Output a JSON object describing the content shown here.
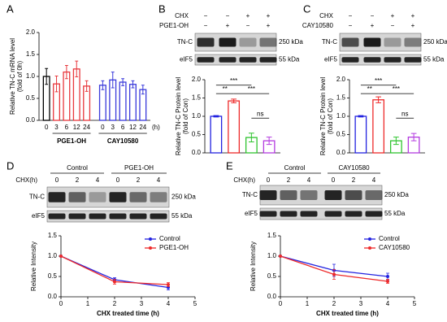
{
  "chart_data": [
    {
      "type": "bar",
      "panel": "A",
      "ylabel": [
        "Relative TN-C mRNA level",
        "(fold of 0h)"
      ],
      "categories": [
        "0",
        "3",
        "6",
        "12",
        "24",
        "0",
        "3",
        "6",
        "12",
        "24"
      ],
      "xunit": "(h)",
      "groups": [
        "PGE1-OH",
        "CAY10580"
      ],
      "values": [
        1.0,
        0.83,
        1.1,
        1.17,
        0.78,
        0.8,
        0.92,
        0.87,
        0.82,
        0.7
      ],
      "errors": [
        0.18,
        0.18,
        0.15,
        0.18,
        0.12,
        0.1,
        0.18,
        0.08,
        0.08,
        0.1
      ],
      "colors": [
        "#000000",
        "#e8383d",
        "#e8383d",
        "#e8383d",
        "#e8383d",
        "#3a3adb",
        "#3a3adb",
        "#3a3adb",
        "#3a3adb",
        "#3a3adb"
      ],
      "ylim": [
        0,
        2
      ],
      "yticks": [
        {
          "value": 0,
          "label": "0.0"
        },
        {
          "value": 0.5,
          "label": "0.5"
        },
        {
          "value": 1,
          "label": "1.0"
        },
        {
          "value": 1.5,
          "label": "1.5"
        },
        {
          "value": 2,
          "label": "2.0"
        }
      ]
    },
    {
      "type": "bar",
      "panel": "B",
      "ylabel": [
        "Relative TN-C Protein level",
        "(fold of Con)"
      ],
      "blot": {
        "rows": [
          {
            "label": "CHX",
            "marks": [
              "−",
              "−",
              "+",
              "+"
            ]
          },
          {
            "label": "PGE1-OH",
            "marks": [
              "−",
              "+",
              "−",
              "+"
            ]
          }
        ],
        "bands": [
          {
            "label": "TN-C",
            "size": "250 kDa"
          },
          {
            "label": "eIF5",
            "size": "55 kDa"
          }
        ]
      },
      "categories": [
        null,
        null,
        null,
        null
      ],
      "values": [
        1.0,
        1.42,
        0.42,
        0.33
      ],
      "errors": [
        0.02,
        0.05,
        0.12,
        0.1
      ],
      "colors": [
        "#2323e0",
        "#ee2a2a",
        "#2fc42f",
        "#b43be0"
      ],
      "annotations": [
        "**",
        "***",
        "***",
        "ns"
      ],
      "ylim": [
        0,
        2
      ],
      "yticks": [
        {
          "value": 0,
          "label": "0.0"
        },
        {
          "value": 0.5,
          "label": "0.5"
        },
        {
          "value": 1,
          "label": "1.0"
        },
        {
          "value": 1.5,
          "label": "1.5"
        },
        {
          "value": 2,
          "label": "2.0"
        }
      ]
    },
    {
      "type": "bar",
      "panel": "C",
      "ylabel": [
        "Relative TN-C Protein level",
        "(fold of Con)"
      ],
      "blot": {
        "rows": [
          {
            "label": "CHX",
            "marks": [
              "−",
              "−",
              "+",
              "+"
            ]
          },
          {
            "label": "CAY10580",
            "marks": [
              "−",
              "+",
              "−",
              "+"
            ]
          }
        ],
        "bands": [
          {
            "label": "TN-C",
            "size": "250 kDa"
          },
          {
            "label": "eIF5",
            "size": "55 kDa"
          }
        ]
      },
      "categories": [
        null,
        null,
        null,
        null
      ],
      "values": [
        1.0,
        1.45,
        0.33,
        0.43
      ],
      "errors": [
        0.02,
        0.08,
        0.1,
        0.1
      ],
      "colors": [
        "#2323e0",
        "#ee2a2a",
        "#2fc42f",
        "#b43be0"
      ],
      "annotations": [
        "**",
        "***",
        "***",
        "ns"
      ],
      "ylim": [
        0,
        2
      ],
      "yticks": [
        {
          "value": 0,
          "label": "0.0"
        },
        {
          "value": 0.5,
          "label": "0.5"
        },
        {
          "value": 1,
          "label": "1.0"
        },
        {
          "value": 1.5,
          "label": "1.5"
        },
        {
          "value": 2,
          "label": "2.0"
        }
      ]
    },
    {
      "type": "line",
      "panel": "D",
      "xlabel": "CHX treated time (h)",
      "ylabel": [
        "Relative Intensity"
      ],
      "blot": {
        "groups": [
          "Control",
          "PGE1-OH"
        ],
        "row_label": "CHX(h)",
        "lanes": [
          "0",
          "2",
          "4",
          "0",
          "2",
          "4"
        ],
        "bands": [
          {
            "label": "TN-C",
            "size": "250 kDa"
          },
          {
            "label": "eIF5",
            "size": "55 kDa"
          }
        ]
      },
      "x": [
        0,
        2,
        4
      ],
      "series": [
        {
          "name": "Control",
          "color": "#2323e0",
          "values": [
            1.0,
            0.42,
            0.23
          ],
          "errors": [
            0,
            0.05,
            0.06
          ]
        },
        {
          "name": "PGE1-OH",
          "color": "#ee2a2a",
          "values": [
            1.0,
            0.37,
            0.3
          ],
          "errors": [
            0,
            0.06,
            0.05
          ]
        }
      ],
      "xlim": [
        0,
        5
      ],
      "xticks": [
        0,
        1,
        2,
        3,
        4,
        5
      ],
      "ylim": [
        0,
        1.5
      ],
      "yticks": [
        {
          "value": 0,
          "label": "0.0"
        },
        {
          "value": 0.5,
          "label": "0.5"
        },
        {
          "value": 1,
          "label": "1.0"
        },
        {
          "value": 1.5,
          "label": "1.5"
        }
      ],
      "legend": "upper right"
    },
    {
      "type": "line",
      "panel": "E",
      "xlabel": "CHX treated time (h)",
      "ylabel": [
        "Relative Intensity"
      ],
      "blot": {
        "groups": [
          "Control",
          "CAY10580"
        ],
        "row_label": "CHX(h)",
        "lanes": [
          "0",
          "2",
          "4",
          "0",
          "2",
          "4"
        ],
        "bands": [
          {
            "label": "TN-C",
            "size": "250 kDa"
          },
          {
            "label": "eIF5",
            "size": "55 kDa"
          }
        ]
      },
      "x": [
        0,
        2,
        4
      ],
      "series": [
        {
          "name": "Control",
          "color": "#2323e0",
          "values": [
            1.0,
            0.65,
            0.5
          ],
          "errors": [
            0,
            0.15,
            0.08
          ]
        },
        {
          "name": "CAY10580",
          "color": "#ee2a2a",
          "values": [
            1.0,
            0.55,
            0.38
          ],
          "errors": [
            0,
            0.12,
            0.05
          ]
        }
      ],
      "xlim": [
        0,
        5
      ],
      "xticks": [
        0,
        1,
        2,
        3,
        4,
        5
      ],
      "ylim": [
        0,
        1.5
      ],
      "yticks": [
        {
          "value": 0,
          "label": "0.0"
        },
        {
          "value": 0.5,
          "label": "0.5"
        },
        {
          "value": 1,
          "label": "1.0"
        },
        {
          "value": 1.5,
          "label": "1.5"
        }
      ],
      "legend": "upper right"
    }
  ]
}
